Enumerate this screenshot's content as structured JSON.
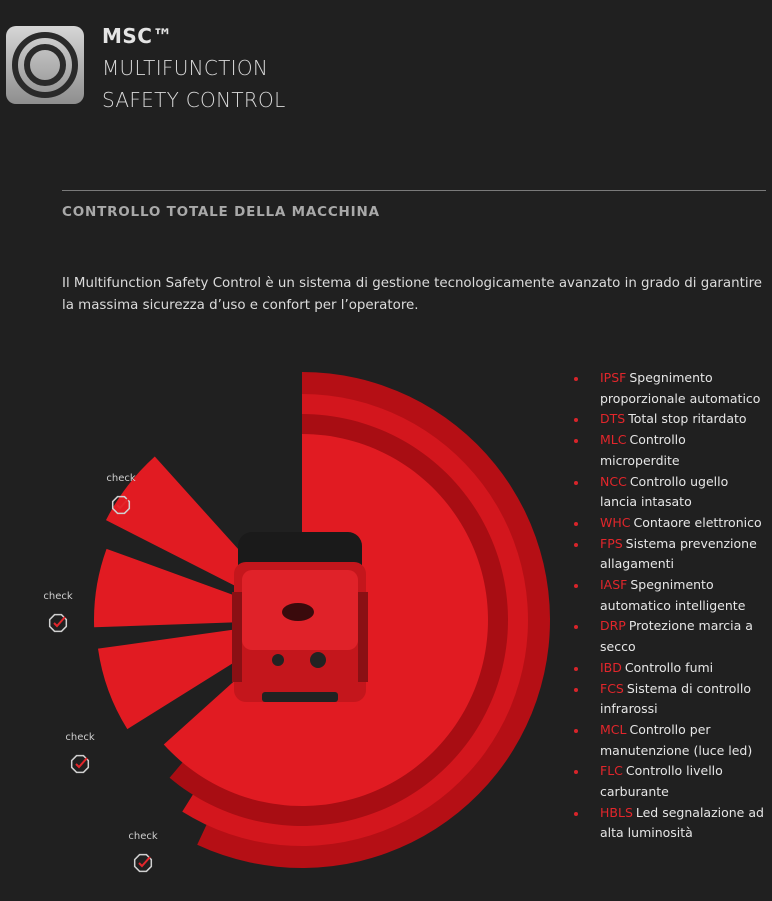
{
  "header": {
    "title": "MSC™",
    "subtitle_lines": [
      "MULTIFUNCTION",
      "SAFETY CONTROL"
    ]
  },
  "section": {
    "heading": "CONTROLLO TOTALE DELLA MACCHINA",
    "intro": "Il Multifunction Safety Control è un sistema di gestione tecnologicamente avanzato in grado di garantire la massima sicurezza d’uso e confort per l’operatore."
  },
  "checks": [
    "check",
    "check",
    "check",
    "check"
  ],
  "features": [
    {
      "code": "IPSF",
      "label": "Spegnimento proporzionale automatico"
    },
    {
      "code": "DTS",
      "label": "Total stop ritardato"
    },
    {
      "code": "MLC",
      "label": "Controllo microperdite"
    },
    {
      "code": "NCC",
      "label": "Controllo ugello lancia intasato"
    },
    {
      "code": "WHC",
      "label": "Contaore elettronico"
    },
    {
      "code": "FPS",
      "label": "Sistema prevenzione allagamenti"
    },
    {
      "code": "IASF",
      "label": "Spegnimento automatico intelligente"
    },
    {
      "code": "DRP",
      "label": "Protezione marcia a secco"
    },
    {
      "code": "IBD",
      "label": "Controllo fumi"
    },
    {
      "code": "FCS",
      "label": "Sistema di controllo infrarossi"
    },
    {
      "code": "MCL",
      "label": "Controllo per manutenzione (luce led)"
    },
    {
      "code": "FLC",
      "label": "Controllo livello carburante"
    },
    {
      "code": "HBLS",
      "label": "Led segnalazione ad alta luminosità"
    }
  ]
}
